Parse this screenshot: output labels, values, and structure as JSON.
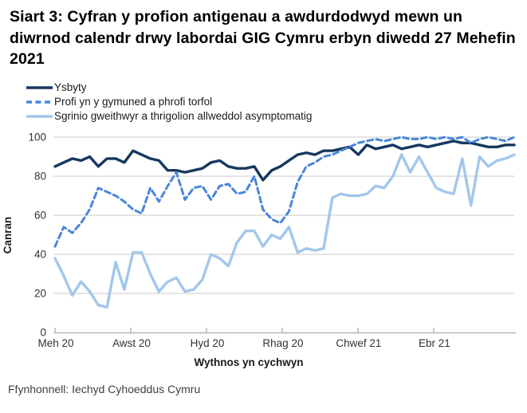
{
  "title": "Siart 3: Cyfran y profion antigenau a awdurdodwyd mewn un diwrnod calendr drwy labordai GIG Cymru erbyn diwedd 27 Mehefin 2021",
  "source": "Ffynhonnell: Iechyd Cyhoeddus Cymru",
  "colors": {
    "title_text": "#000000",
    "axis_text": "#333333",
    "gridline": "#C9C9C9",
    "axis_line": "#ADADAD",
    "source_text": "#404040"
  },
  "chart_data": {
    "type": "line",
    "title": "Siart 3: Cyfran y profion antigenau a awdurdodwyd mewn un diwrnod calendr drwy labordai GIG Cymru erbyn diwedd 27 Mehefin 2021",
    "xlabel": "Wythnos yn cychwyn",
    "ylabel": "Canran",
    "ylim": [
      0,
      100
    ],
    "y_ticks": [
      0,
      20,
      40,
      60,
      80,
      100
    ],
    "grid": true,
    "legend_position": "top-left",
    "x_tick_labels": [
      "Meh 20",
      "Awst 20",
      "Hyd 20",
      "Rhag 20",
      "Chwef 21",
      "Ebr 21"
    ],
    "x_tick_weeks": [
      0,
      8.74,
      17.48,
      26.22,
      34.96,
      43.7
    ],
    "x_unit": "week index (weekly data, Meh 20 to Meh 21)",
    "n_points": 54,
    "series": [
      {
        "name": "Ysbyty",
        "color": "#17375E",
        "style": "solid",
        "values": [
          85,
          87,
          89,
          88,
          90,
          85,
          89,
          89,
          87,
          93,
          91,
          89,
          88,
          83,
          83,
          82,
          83,
          84,
          87,
          88,
          85,
          84,
          84,
          85,
          78,
          83,
          85,
          88,
          91,
          92,
          91,
          93,
          93,
          94,
          95,
          91,
          96,
          94,
          95,
          96,
          94,
          95,
          96,
          95,
          96,
          97,
          98,
          97,
          97,
          96,
          95,
          95,
          96,
          96
        ]
      },
      {
        "name": "Profi yn y gymuned a phrofi torfol",
        "color": "#4A86D9",
        "style": "dashed",
        "values": [
          44,
          54,
          51,
          56,
          63,
          74,
          72,
          70,
          67,
          63,
          61,
          74,
          67,
          75,
          82,
          68,
          74,
          75,
          68,
          75,
          76,
          71,
          72,
          80,
          63,
          58,
          56,
          62,
          77,
          85,
          87,
          90,
          91,
          93,
          95,
          97,
          98,
          99,
          98,
          99,
          100,
          99,
          99,
          100,
          99,
          100,
          99,
          100,
          97,
          99,
          100,
          99,
          98,
          100
        ]
      },
      {
        "name": "Sgrinio gweithwyr a thrigolion allweddol asymptomatig",
        "color": "#A3C7EB",
        "style": "solid",
        "values": [
          38,
          29,
          19,
          26,
          21,
          14,
          13,
          36,
          22,
          41,
          41,
          30,
          21,
          26,
          28,
          21,
          22,
          27,
          40,
          38,
          34,
          46,
          52,
          52,
          44,
          50,
          48,
          54,
          41,
          43,
          42,
          43,
          69,
          71,
          70,
          70,
          71,
          75,
          74,
          80,
          91,
          82,
          90,
          82,
          74,
          72,
          71,
          89,
          65,
          90,
          85,
          88,
          89,
          91
        ]
      }
    ]
  }
}
